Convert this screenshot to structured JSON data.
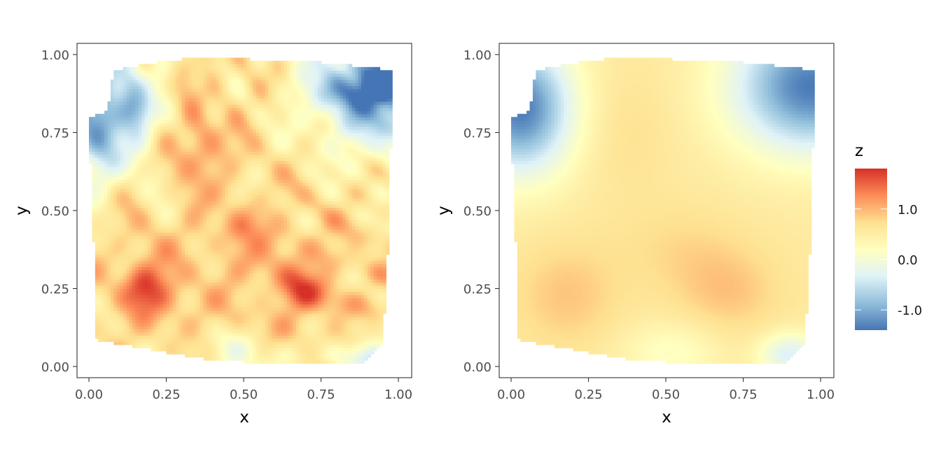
{
  "chart_data": [
    {
      "type": "heatmap",
      "panel": "left",
      "xlabel": "x",
      "ylabel": "y",
      "xlim": [
        0,
        1
      ],
      "ylim": [
        0,
        1
      ],
      "xticks": [
        0,
        0.25,
        0.5,
        0.75,
        1
      ],
      "yticks": [
        0,
        0.25,
        0.5,
        0.75,
        1
      ],
      "xtick_labels": [
        "0.00",
        "0.25",
        "0.50",
        "0.75",
        "1.00"
      ],
      "ytick_labels": [
        "0.00",
        "0.25",
        "0.50",
        "0.75",
        "1.00"
      ],
      "grid": false,
      "surface": "noisy",
      "hull": [
        [
          0.02,
          0.09
        ],
        [
          0.05,
          0.08
        ],
        [
          0.4,
          0.02
        ],
        [
          0.6,
          0.01
        ],
        [
          0.88,
          0.01
        ],
        [
          0.95,
          0.07
        ],
        [
          0.97,
          0.45
        ],
        [
          0.98,
          0.95
        ],
        [
          0.9,
          0.96
        ],
        [
          0.7,
          0.98
        ],
        [
          0.35,
          0.99
        ],
        [
          0.25,
          0.98
        ],
        [
          0.08,
          0.95
        ],
        [
          0.06,
          0.82
        ],
        [
          0.0,
          0.8
        ],
        [
          0.01,
          0.5
        ],
        [
          0.02,
          0.3
        ]
      ]
    },
    {
      "type": "heatmap",
      "panel": "right",
      "xlabel": "x",
      "ylabel": "y",
      "xlim": [
        0,
        1
      ],
      "ylim": [
        0,
        1
      ],
      "xticks": [
        0,
        0.25,
        0.5,
        0.75,
        1
      ],
      "yticks": [
        0,
        0.25,
        0.5,
        0.75,
        1
      ],
      "xtick_labels": [
        "0.00",
        "0.25",
        "0.50",
        "0.75",
        "1.00"
      ],
      "ytick_labels": [
        "0.00",
        "0.25",
        "0.50",
        "0.75",
        "1.00"
      ],
      "grid": false,
      "surface": "smooth",
      "hull": [
        [
          0.02,
          0.09
        ],
        [
          0.05,
          0.08
        ],
        [
          0.4,
          0.02
        ],
        [
          0.6,
          0.01
        ],
        [
          0.88,
          0.01
        ],
        [
          0.95,
          0.07
        ],
        [
          0.97,
          0.45
        ],
        [
          0.98,
          0.95
        ],
        [
          0.9,
          0.96
        ],
        [
          0.7,
          0.98
        ],
        [
          0.35,
          0.99
        ],
        [
          0.25,
          0.98
        ],
        [
          0.08,
          0.95
        ],
        [
          0.06,
          0.82
        ],
        [
          0.0,
          0.8
        ],
        [
          0.01,
          0.5
        ],
        [
          0.02,
          0.3
        ]
      ]
    }
  ],
  "legend": {
    "title": "z",
    "placement": "right",
    "range": [
      -1.4,
      1.8
    ],
    "ticks": [
      -1.0,
      0.0,
      1.0
    ],
    "tick_labels": [
      "-1.0",
      "0.0",
      "1.0"
    ],
    "palette": [
      "#4575b4",
      "#91bfdb",
      "#e0f3f8",
      "#ffffbf",
      "#fee090",
      "#fc8d59",
      "#d73027"
    ]
  }
}
